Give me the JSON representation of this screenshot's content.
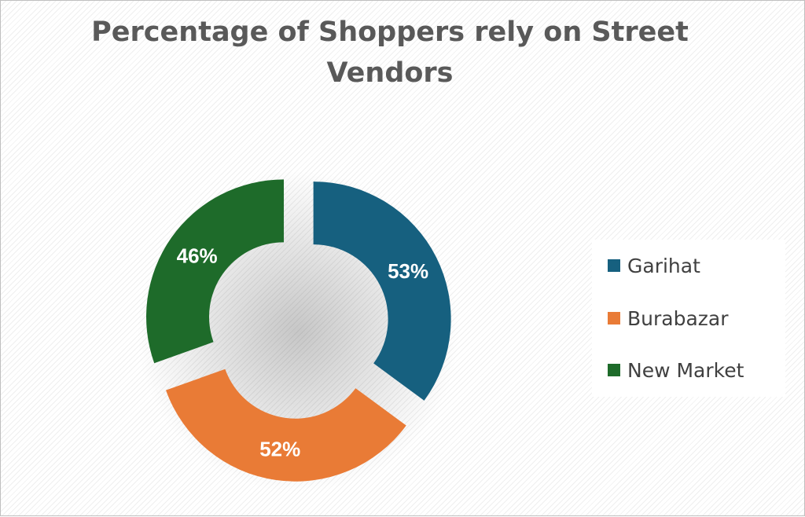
{
  "chart_data": {
    "type": "donut",
    "title": "Percentage of Shoppers rely on Street Vendors",
    "categories": [
      "Garihat",
      "Burabazar",
      "New Market"
    ],
    "values": [
      53,
      52,
      46
    ],
    "value_labels": [
      "53%",
      "52%",
      "46%"
    ],
    "unit": "%",
    "colors": [
      "#16607f",
      "#e97b36",
      "#1e6b2a"
    ],
    "legend_position": "right",
    "exploded": true
  }
}
